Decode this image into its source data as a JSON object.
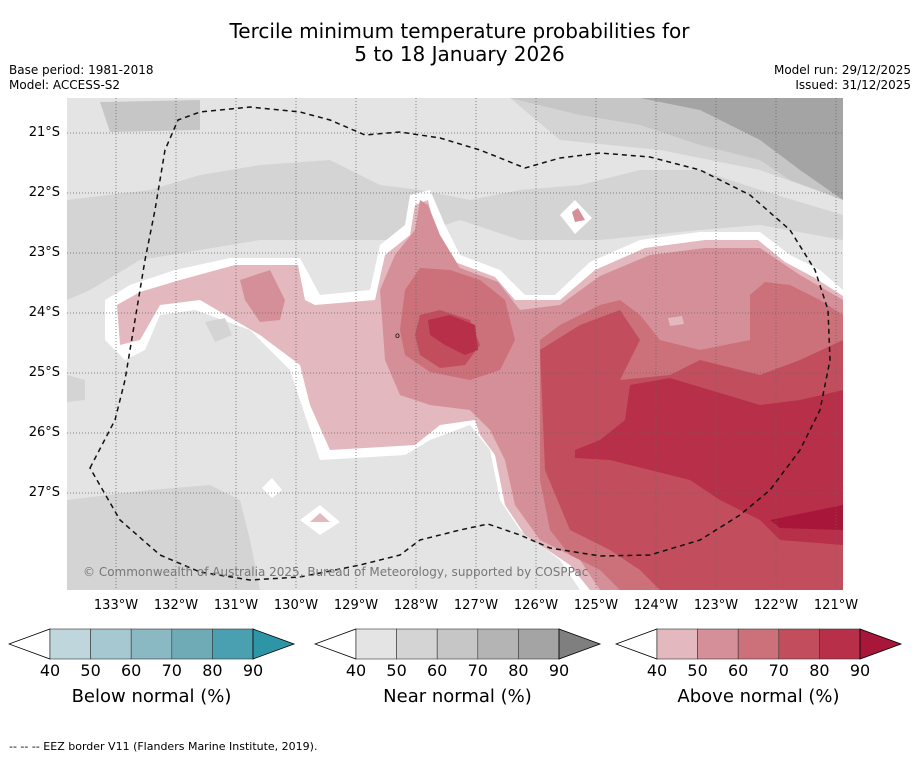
{
  "title": {
    "line1": "Tercile minimum temperature probabilities for",
    "line2": "5 to 18 January 2026"
  },
  "meta": {
    "base_period": "Base period: 1981-2018",
    "model": "Model: ACCESS-S2",
    "model_run": "Model run: 29/12/2025",
    "issued": "Issued: 31/12/2025"
  },
  "axes": {
    "lon_labels": [
      "133°W",
      "132°W",
      "131°W",
      "130°W",
      "129°W",
      "128°W",
      "127°W",
      "126°W",
      "125°W",
      "124°W",
      "123°W",
      "122°W",
      "121°W"
    ],
    "lat_labels": [
      "21°S",
      "22°S",
      "23°S",
      "24°S",
      "25°S",
      "26°S",
      "27°S"
    ]
  },
  "credit": "© Commonwealth of Australia 2025, Bureau of Meteorology, supported by COSPPac",
  "colorbars": [
    {
      "title": "Below normal (%)",
      "ticks": [
        "40",
        "50",
        "60",
        "70",
        "80",
        "90"
      ],
      "colors": [
        "#bfd6dc",
        "#a6c8d0",
        "#8bb9c3",
        "#6eabb7",
        "#4aa0b1",
        "#2d95a6"
      ]
    },
    {
      "title": "Near normal (%)",
      "ticks": [
        "40",
        "50",
        "60",
        "70",
        "80",
        "90"
      ],
      "colors": [
        "#e4e4e4",
        "#d4d4d4",
        "#c6c6c6",
        "#b4b4b4",
        "#a4a4a4",
        "#7f7f7f"
      ]
    },
    {
      "title": "Above normal (%)",
      "ticks": [
        "40",
        "50",
        "60",
        "70",
        "80",
        "90"
      ],
      "colors": [
        "#e3b8be",
        "#d58f98",
        "#cc7079",
        "#c24e5d",
        "#b72f48",
        "#a8173a"
      ]
    }
  ],
  "footer": "--  --  -- EEZ border V11 (Flanders Marine Institute, 2019)."
}
